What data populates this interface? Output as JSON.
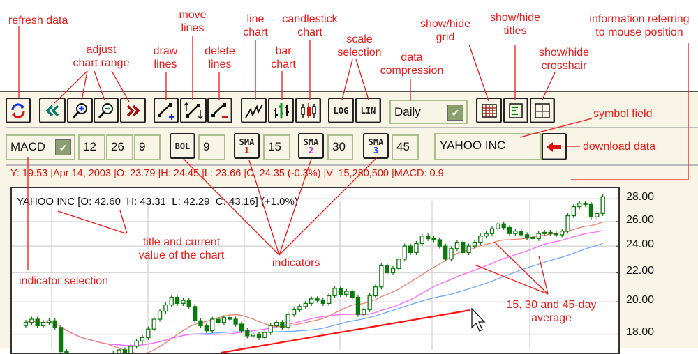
{
  "toolbar": {
    "data_compression": "Daily",
    "scale_log": "LOG",
    "scale_lin": "LIN"
  },
  "indicator_row": {
    "indicator_select": "MACD",
    "macd_params": [
      "12",
      "26",
      "9"
    ],
    "bol_label": "BOL",
    "bol_param": "9",
    "sma": [
      {
        "label": "SMA",
        "num": "1",
        "value": "15",
        "color": "#e02020"
      },
      {
        "label": "SMA",
        "num": "2",
        "value": "30",
        "color": "#e020e0"
      },
      {
        "label": "SMA",
        "num": "3",
        "value": "45",
        "color": "#2040ff"
      }
    ],
    "symbol": "YAHOO INC"
  },
  "info_line": "Y: 19.53 |Apr 14, 2003 |O: 23.79 |H: 24.45 |L: 23.66 |C: 24.35 (-0.3%) |V: 15,280,500 |MACD: 0.9",
  "chart_title": "YAHOO INC [O: 42.60  H: 43.31  L: 42.29  C: 43.16] (+1.0%)",
  "annotations": {
    "refresh": "refresh data",
    "range": "adjust\nchart range",
    "draw": "draw\nlines",
    "move": "move\nlines",
    "delete": "delete\nlines",
    "line": "line\nchart",
    "bar": "bar\nchart",
    "candle": "candlestick\nchart",
    "scale": "scale\nselection",
    "compression": "data\ncompression",
    "grid": "show/hide\ngrid",
    "titles": "show/hide\ntitles",
    "crosshair": "show/hide\ncrosshair",
    "info": "information referring\nto mouse position",
    "symbol": "symbol field",
    "download": "download data",
    "title": "title and current\nvalue of the chart",
    "indicators": "indicators",
    "indsel": "indicator selection",
    "averages": "15, 30 and 45-day\naverage"
  },
  "chart_data": {
    "type": "candlestick",
    "scale": "log",
    "grid": true,
    "ylim": [
      17.1,
      29.0
    ],
    "y_ticks": [
      "28.00",
      "26.00",
      "24.00",
      "22.00",
      "20.00",
      "18.00"
    ],
    "closes": [
      18.7,
      18.9,
      18.5,
      18.7,
      18.8,
      18.4,
      17.0,
      16.8,
      16.5,
      16.6,
      16.4,
      16.8,
      16.5,
      16.3,
      16.6,
      16.9,
      17.1,
      16.8,
      17.3,
      17.6,
      17.8,
      18.3,
      18.9,
      19.4,
      19.8,
      20.3,
      19.9,
      20.1,
      19.7,
      18.8,
      18.5,
      18.2,
      18.9,
      18.7,
      19.0,
      18.9,
      18.6,
      18.2,
      17.9,
      18.0,
      17.8,
      18.1,
      18.5,
      18.7,
      18.4,
      19.2,
      19.5,
      19.7,
      19.9,
      20.2,
      20.1,
      19.9,
      20.4,
      20.9,
      20.5,
      20.7,
      20.3,
      19.2,
      19.5,
      20.4,
      21.0,
      22.5,
      22.0,
      22.3,
      23.0,
      24.0,
      23.5,
      24.2,
      24.8,
      24.6,
      24.5,
      24.0,
      23.0,
      23.8,
      24.3,
      23.5,
      24.0,
      24.3,
      24.8,
      25.0,
      25.4,
      25.8,
      25.5,
      25.0,
      25.2,
      24.9,
      24.7,
      24.6,
      25.0,
      25.1,
      25.0,
      24.9,
      25.2,
      26.5,
      27.3,
      27.6,
      27.5,
      26.4,
      26.7,
      28.2
    ],
    "moving_averages": [
      15,
      30,
      45
    ],
    "colors": {
      "up": "#0a7a0a",
      "ma15": "#f08070",
      "ma30": "#ff66ff",
      "ma45": "#70a8ff",
      "trendline": "#ff1010",
      "annotation": "#f01818",
      "panel": "#f8f5e6"
    }
  }
}
